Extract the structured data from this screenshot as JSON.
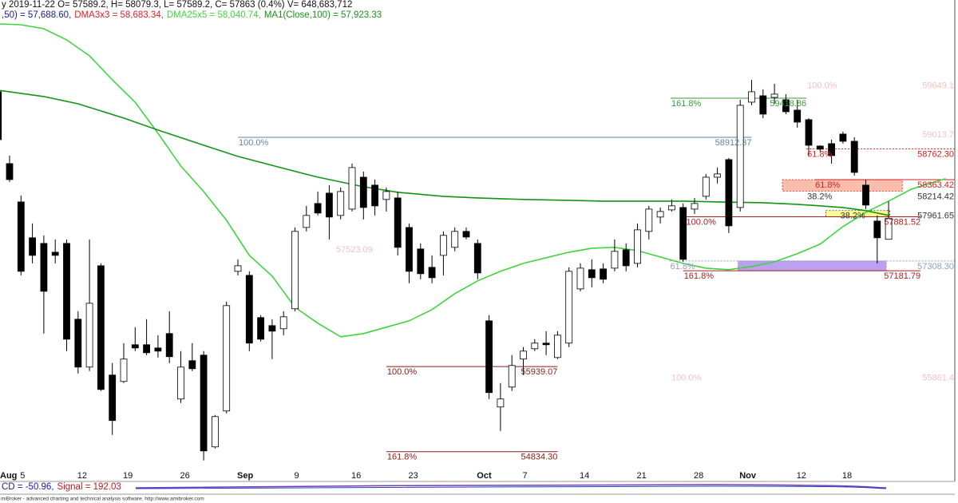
{
  "chart_data": {
    "type": "candlestick",
    "header": "y 2019-11-22 O= 57589.2, H= 58079.3, L= 57589.2, C= 57863 (0.4%) V= 648,683,712",
    "series": [
      {
        "name": ",50) = 57,688.60,",
        "color": "#1a1a8c"
      },
      {
        "name": "DMA3x3 = 58,683.34,",
        "color": "#e02020"
      },
      {
        "name": "DMA25x5 = 58,040.74,",
        "color": "#3fd43f",
        "x": [
          0,
          2,
          4,
          6,
          8,
          10,
          12,
          14,
          16,
          18,
          20,
          22,
          24,
          26,
          28,
          30,
          32,
          34,
          36,
          38,
          40,
          42,
          44,
          46,
          48,
          50,
          52,
          54,
          56,
          58,
          60,
          62,
          64,
          66,
          68,
          70,
          72,
          74,
          76,
          78,
          80,
          82,
          83
        ],
        "values": [
          60383,
          60372,
          60320,
          60176,
          59969,
          59658,
          59368,
          58965,
          58540,
          58209,
          57836,
          57381,
          57112,
          56708,
          56501,
          56325,
          56367,
          56450,
          56532,
          56677,
          56884,
          57050,
          57174,
          57277,
          57350,
          57422,
          57474,
          57485,
          57443,
          57360,
          57277,
          57215,
          57195,
          57236,
          57298,
          57402,
          57526,
          57754,
          57940,
          58085,
          58240,
          58333,
          58375
        ]
      },
      {
        "name": "MA1(Close,100) = 57,923.33",
        "color": "#149414",
        "x": [
          0,
          4,
          7,
          11,
          14,
          18,
          21,
          25,
          28,
          32,
          35,
          39,
          42,
          46,
          50,
          53,
          60,
          63,
          67,
          70,
          74,
          76,
          78
        ],
        "values": [
          59523,
          59441,
          59347,
          59161,
          59006,
          58809,
          58664,
          58509,
          58395,
          58271,
          58199,
          58147,
          58126,
          58106,
          58095,
          58085,
          58085,
          58074,
          58064,
          58043,
          58002,
          57961,
          57899
        ]
      }
    ],
    "categories": [
      "Aug",
      null,
      "5",
      null,
      null,
      null,
      null,
      "12",
      null,
      null,
      null,
      "19",
      null,
      null,
      null,
      null,
      "26",
      null,
      null,
      null,
      null,
      "Sep",
      null,
      null,
      null,
      null,
      "9",
      null,
      null,
      null,
      null,
      "16",
      null,
      null,
      null,
      null,
      "23",
      null,
      null,
      null,
      null,
      null,
      "Oct",
      null,
      null,
      null,
      "7",
      null,
      null,
      null,
      null,
      "14",
      null,
      null,
      null,
      null,
      "21",
      null,
      null,
      null,
      null,
      "28",
      null,
      null,
      null,
      "Nov",
      null,
      null,
      null,
      null,
      "12",
      null,
      null,
      null,
      "18",
      null,
      null,
      null,
      null,
      null,
      null,
      null,
      null,
      null
    ],
    "open": [
      59503,
      58571,
      58074,
      57609,
      57536,
      57422,
      57536,
      56553,
      55932,
      57246,
      55829,
      55746,
      56222,
      56222,
      56180,
      56367,
      55518,
      56015,
      56087,
      54897,
      55363,
      57174,
      57122,
      56574,
      56470,
      56429,
      56688,
      57743,
      58054,
      58188,
      57899,
      57981,
      58395,
      58292,
      58106,
      58126,
      57743,
      57464,
      57226,
      57381,
      57485,
      57692,
      57536,
      56532,
      55415,
      55673,
      56036,
      56170,
      56243,
      56056,
      56243,
      56946,
      57195,
      57205,
      57215,
      57453,
      57277,
      57692,
      57878,
      57971,
      58002,
      57981,
      58147,
      58395,
      58623,
      58002,
      59368,
      59451,
      59430,
      59399,
      59265,
      59141,
      58799,
      58830,
      58954,
      58861,
      58292,
      57826,
      57589.2,
      null,
      null,
      null,
      null,
      null
    ],
    "high": [
      59554,
      58675,
      58157,
      57795,
      57640,
      57588,
      57588,
      56656,
      57588,
      57277,
      55984,
      56243,
      56450,
      56553,
      56346,
      56656,
      56139,
      56243,
      56139,
      55311,
      56781,
      57329,
      57174,
      56605,
      56553,
      56656,
      57743,
      58023,
      58209,
      58292,
      58261,
      58571,
      58468,
      58364,
      58261,
      58209,
      57795,
      57536,
      57381,
      57692,
      57743,
      57743,
      57588,
      56605,
      55725,
      56087,
      56191,
      56294,
      56398,
      56398,
      57226,
      57277,
      57329,
      57277,
      57588,
      57536,
      57795,
      58023,
      58002,
      58106,
      58054,
      58126,
      58437,
      58520,
      58644,
      59399,
      59658,
      59534,
      59606,
      59472,
      59399,
      59161,
      58809,
      58882,
      58985,
      58913,
      58364,
      57899,
      58079.3,
      null,
      null,
      null,
      null,
      null
    ],
    "low": [
      58830,
      58333,
      57122,
      57277,
      56367,
      57277,
      56139,
      55849,
      55880,
      55622,
      55052,
      55725,
      56139,
      56087,
      56056,
      55984,
      55466,
      55880,
      54721,
      54876,
      55332,
      57122,
      56139,
      56263,
      56036,
      56346,
      56656,
      57692,
      57899,
      57588,
      57847,
      57950,
      57847,
      57899,
      57950,
      57381,
      57019,
      57071,
      57019,
      57122,
      57433,
      57588,
      57071,
      55518,
      55104,
      55622,
      55829,
      56139,
      56087,
      56036,
      56191,
      56915,
      56967,
      57019,
      57174,
      57174,
      57226,
      57588,
      57795,
      57950,
      57298,
      57919,
      58106,
      58313,
      57671,
      57950,
      59327,
      59161,
      59348,
      59213,
      59037,
      58675,
      58727,
      58571,
      58830,
      58416,
      57981,
      57277,
      57589.2,
      null,
      null,
      null,
      null,
      null
    ],
    "close": [
      58882,
      58364,
      57174,
      57381,
      56915,
      57381,
      56294,
      55932,
      56760,
      55642,
      55239,
      56036,
      56180,
      56118,
      56139,
      56067,
      55932,
      55911,
      54845,
      55290,
      56729,
      57246,
      56243,
      56294,
      56398,
      56584,
      57692,
      57899,
      57930,
      57878,
      58209,
      58520,
      58002,
      58023,
      58209,
      57485,
      57174,
      57143,
      57091,
      57640,
      57692,
      57619,
      57153,
      55601,
      55518,
      55953,
      56139,
      56243,
      56222,
      56346,
      57174,
      57215,
      57091,
      57071,
      57433,
      57246,
      57712,
      57981,
      57950,
      58023,
      57329,
      58054,
      58395,
      58437,
      57764,
      59327,
      59503,
      59213,
      59472,
      59244,
      59109,
      58809,
      58758,
      58675,
      58861,
      58457,
      58033,
      57609,
      57863,
      null,
      null,
      null,
      null,
      null
    ],
    "up_color": "#ffffff",
    "down_color": "#000000",
    "ylim": [
      54480,
      60693
    ],
    "levels": [
      {
        "value": 58912.37,
        "label": "58912.37",
        "pct": "100.0%",
        "color": "#5f86a0",
        "bars": [
          21,
          66
        ]
      },
      {
        "value": 55939.07,
        "label": "55939.07",
        "pct": "100.0%",
        "color": "#8b1a1a",
        "bars": [
          34,
          49
        ]
      },
      {
        "value": 54834.3,
        "label": "54834.30",
        "pct": "161.8%",
        "color": "#8b1a1a",
        "bars": [
          34,
          49
        ]
      },
      {
        "value": 59418.86,
        "label": "59418.86",
        "pct": "161.8%",
        "color": "#3a9a3a",
        "bars": [
          58.9,
          70.8
        ]
      },
      {
        "value": 59649.1,
        "label": "59649.1",
        "pct": "100.0%",
        "color": "#f2c2c2",
        "bars": [
          70.8,
          84
        ],
        "line": false
      },
      {
        "value": 59013.7,
        "label": "59013.7",
        "color": "#f2c2c2",
        "bars": [
          73,
          84
        ],
        "line": false
      },
      {
        "value": 58762.3,
        "label": "58762.30",
        "pct": "61.8%",
        "color": "#d42020",
        "bars": [
          70.8,
          84
        ],
        "dashed": true
      },
      {
        "value": 58363.42,
        "label": "58363.42",
        "pct": "61.8%",
        "color": "#d42020",
        "bars": [
          71.5,
          84
        ],
        "zone": {
          "color": "#f9b09c",
          "bars": [
            68.7,
            79.2
          ]
        }
      },
      {
        "value": 58214.42,
        "label": "58214.42",
        "pct": "38.2%",
        "color": "#333333",
        "bars": [
          70.8,
          84
        ],
        "line": false
      },
      {
        "value": 57961.65,
        "label": "57961.65",
        "pct": "38.2%",
        "color": "#333333",
        "bars": [
          73.7,
          84
        ],
        "line": false,
        "zone": {
          "color": "#ffff80",
          "bars": [
            72.5,
            78.1
          ]
        }
      },
      {
        "value": 57881.52,
        "label": "57881.52",
        "pct": "100.0%",
        "color": "#a82020",
        "bars": [
          60.2,
          80.8
        ]
      },
      {
        "value": 57308.3,
        "label": "57308.30",
        "pct": "61.8%",
        "color": "#8fa0c0",
        "bars": [
          58.8,
          84
        ],
        "dashed": true,
        "zone": {
          "color": "#b08ff0",
          "bars": [
            64.8,
            77.8
          ]
        }
      },
      {
        "value": 57181.79,
        "label": "57181.79",
        "pct": "161.8%",
        "color": "#a82020",
        "bars": [
          60,
          80.8
        ]
      },
      {
        "value": 57523.09,
        "label": "57523.09",
        "color": "#f2c2c2",
        "bars": [
          29.5,
          32.8
        ],
        "line": false
      },
      {
        "value": 55861.4,
        "label": "55861.4",
        "pct": "100.0%",
        "color": "#f2c2c2",
        "bars": [
          58.9,
          84
        ],
        "line": false
      }
    ]
  },
  "macd": [
    {
      "text": "CD = -50.96,",
      "color": "#1a1aa0"
    },
    {
      "text": "Signal = 192.03",
      "color": "#c01818"
    }
  ],
  "footer": "miBroker - advanced charting and technical analysis software. http://www.amibroker.com"
}
